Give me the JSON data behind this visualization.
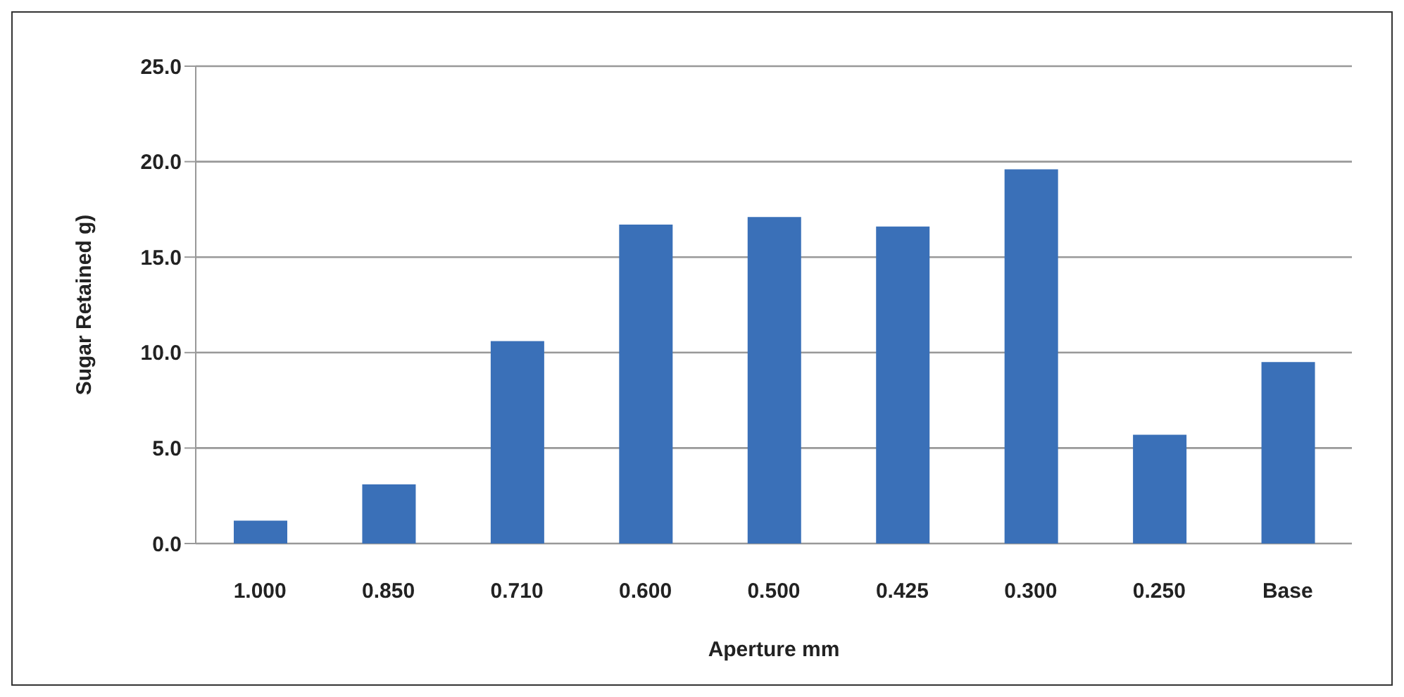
{
  "chart_data": {
    "type": "bar",
    "xlabel": "Aperture mm",
    "ylabel": "Sugar Retained g)",
    "categories": [
      "1.000",
      "0.850",
      "0.710",
      "0.600",
      "0.500",
      "0.425",
      "0.300",
      "0.250",
      "Base"
    ],
    "series": [
      {
        "color": "#3a70b8",
        "values": [
          1.2,
          3.1,
          10.6,
          16.7,
          17.1,
          16.6,
          19.6,
          5.7,
          9.5
        ]
      }
    ],
    "ylim": [
      0,
      25
    ],
    "yticks": [
      {
        "value": 0,
        "label": "0.0"
      },
      {
        "value": 5,
        "label": "5.0"
      },
      {
        "value": 10,
        "label": "10.0"
      },
      {
        "value": 15,
        "label": "15.0"
      },
      {
        "value": 20,
        "label": "20.0"
      },
      {
        "value": 25,
        "label": "25.0"
      }
    ],
    "grid": "y",
    "legend": false
  }
}
